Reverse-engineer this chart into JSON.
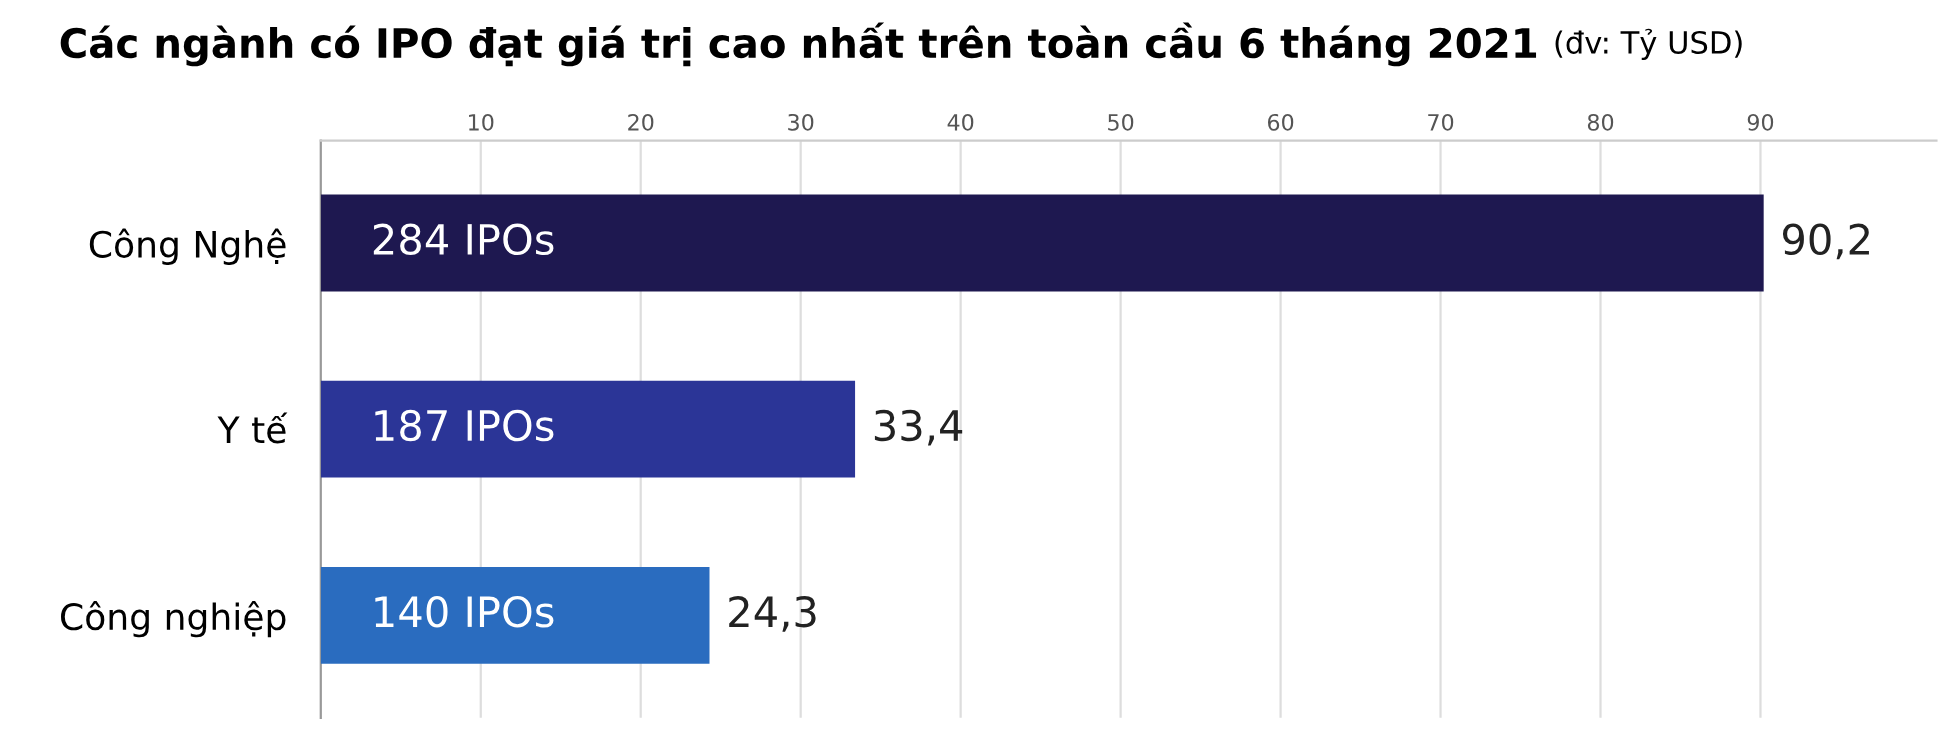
{
  "chart_data": {
    "type": "bar",
    "orientation": "horizontal",
    "title": "Các ngành có IPO đạt giá trị cao nhất trên toàn cầu 6 tháng 2021",
    "subtitle": "(đv: Tỷ USD)",
    "categories": [
      "Công Nghệ",
      "Y tế",
      "Công nghiệp"
    ],
    "values": [
      90.2,
      33.4,
      24.3
    ],
    "colors": [
      "#1e1850",
      "#2b3597",
      "#2a6cbf"
    ],
    "value_labels": [
      "90,2",
      "33,4",
      "24,3"
    ],
    "annotations": [
      "284 IPOs",
      "187 IPOs",
      "140 IPOs"
    ],
    "xlim": [
      0,
      101
    ],
    "xticks": [
      10,
      20,
      30,
      40,
      50,
      60,
      70,
      80,
      90
    ],
    "grid": "x",
    "legend": false
  }
}
